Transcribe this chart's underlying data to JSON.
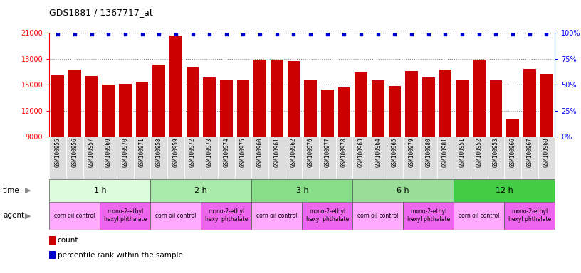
{
  "title": "GDS1881 / 1367717_at",
  "samples": [
    "GSM100955",
    "GSM100956",
    "GSM100957",
    "GSM100969",
    "GSM100970",
    "GSM100971",
    "GSM100958",
    "GSM100959",
    "GSM100972",
    "GSM100973",
    "GSM100974",
    "GSM100975",
    "GSM100960",
    "GSM100961",
    "GSM100962",
    "GSM100976",
    "GSM100977",
    "GSM100978",
    "GSM100963",
    "GSM100964",
    "GSM100965",
    "GSM100979",
    "GSM100980",
    "GSM100981",
    "GSM100951",
    "GSM100952",
    "GSM100953",
    "GSM100966",
    "GSM100967",
    "GSM100968"
  ],
  "counts": [
    16100,
    16700,
    16000,
    15000,
    15100,
    15300,
    17300,
    20700,
    17100,
    15800,
    15600,
    15600,
    17900,
    17900,
    17700,
    15600,
    14400,
    14700,
    16500,
    15500,
    14800,
    16600,
    15800,
    16700,
    15600,
    17900,
    15500,
    11000,
    16800,
    16200
  ],
  "percentile_ranks": [
    99,
    99,
    99,
    99,
    99,
    99,
    99,
    99,
    99,
    99,
    99,
    99,
    99,
    99,
    99,
    99,
    99,
    99,
    99,
    99,
    99,
    99,
    99,
    99,
    99,
    99,
    99,
    99,
    99,
    99
  ],
  "time_groups": [
    {
      "label": "1 h",
      "start": 0,
      "end": 6,
      "color": "#ddfcdd"
    },
    {
      "label": "2 h",
      "start": 6,
      "end": 12,
      "color": "#aaeaaa"
    },
    {
      "label": "3 h",
      "start": 12,
      "end": 18,
      "color": "#88dd88"
    },
    {
      "label": "6 h",
      "start": 18,
      "end": 24,
      "color": "#99dd99"
    },
    {
      "label": "12 h",
      "start": 24,
      "end": 30,
      "color": "#44cc44"
    }
  ],
  "agent_groups": [
    {
      "label": "corn oil control",
      "start": 0,
      "end": 3,
      "color": "#ffaaff"
    },
    {
      "label": "mono-2-ethyl\nhexyl phthalate",
      "start": 3,
      "end": 6,
      "color": "#ee66ee"
    },
    {
      "label": "corn oil control",
      "start": 6,
      "end": 9,
      "color": "#ffaaff"
    },
    {
      "label": "mono-2-ethyl\nhexyl phthalate",
      "start": 9,
      "end": 12,
      "color": "#ee66ee"
    },
    {
      "label": "corn oil control",
      "start": 12,
      "end": 15,
      "color": "#ffaaff"
    },
    {
      "label": "mono-2-ethyl\nhexyl phthalate",
      "start": 15,
      "end": 18,
      "color": "#ee66ee"
    },
    {
      "label": "corn oil control",
      "start": 18,
      "end": 21,
      "color": "#ffaaff"
    },
    {
      "label": "mono-2-ethyl\nhexyl phthalate",
      "start": 21,
      "end": 24,
      "color": "#ee66ee"
    },
    {
      "label": "corn oil control",
      "start": 24,
      "end": 27,
      "color": "#ffaaff"
    },
    {
      "label": "mono-2-ethyl\nhexyl phthalate",
      "start": 27,
      "end": 30,
      "color": "#ee66ee"
    }
  ],
  "bar_color": "#cc0000",
  "percentile_color": "#0000cc",
  "ylim_left": [
    9000,
    21000
  ],
  "ylim_right": [
    0,
    100
  ],
  "yticks_left": [
    9000,
    12000,
    15000,
    18000,
    21000
  ],
  "yticks_right": [
    0,
    25,
    50,
    75,
    100
  ],
  "background_color": "#ffffff",
  "grid_color": "#888888",
  "xtick_bg": "#dddddd"
}
